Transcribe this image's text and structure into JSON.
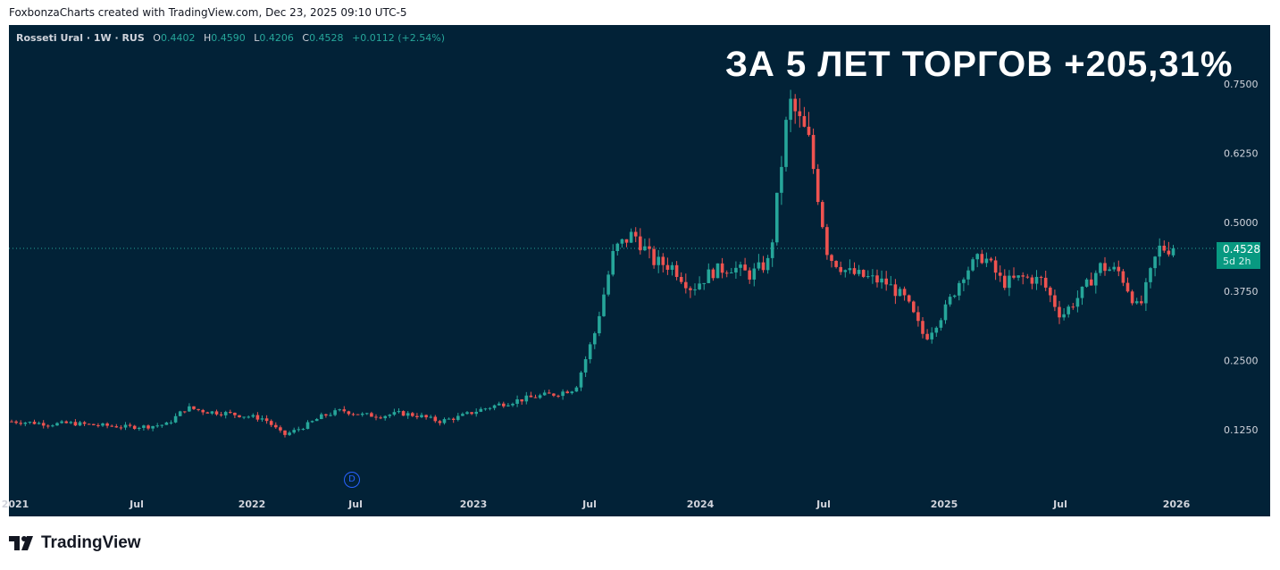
{
  "credit": "FoxbonzaCharts created with TradingView.com, Dec 23, 2025 09:10 UTC-5",
  "legend": {
    "symbol": "Rosseti Ural · 1W · RUS",
    "o_label": "O",
    "o": "0.4402",
    "h_label": "H",
    "h": "0.4590",
    "l_label": "L",
    "l": "0.4206",
    "c_label": "C",
    "c": "0.4528",
    "change": "+0.0112 (+2.54%)"
  },
  "headline": "ЗА 5 ЛЕТ ТОРГОВ +205,31%",
  "last_price": {
    "value": "0.4528",
    "countdown": "5d 2h"
  },
  "dividend_marker": "D",
  "logo": "TradingView",
  "colors": {
    "up": "#26a69a",
    "down": "#ef5350",
    "bg": "#022237"
  },
  "chart_data": {
    "type": "candlestick",
    "title": "Rosseti Ural · 1W · RUS",
    "interval": "weekly",
    "monthly_close_approx": {
      "start": "2021-01",
      "end": "2025-12",
      "values": [
        0.14,
        0.138,
        0.135,
        0.137,
        0.134,
        0.132,
        0.13,
        0.131,
        0.135,
        0.165,
        0.158,
        0.155,
        0.15,
        0.145,
        0.115,
        0.13,
        0.15,
        0.16,
        0.152,
        0.15,
        0.155,
        0.15,
        0.14,
        0.148,
        0.16,
        0.17,
        0.178,
        0.185,
        0.19,
        0.2,
        0.3,
        0.45,
        0.48,
        0.43,
        0.42,
        0.38,
        0.41,
        0.42,
        0.405,
        0.43,
        0.72,
        0.65,
        0.44,
        0.41,
        0.4,
        0.39,
        0.36,
        0.29,
        0.34,
        0.41,
        0.44,
        0.39,
        0.4,
        0.395,
        0.33,
        0.37,
        0.42,
        0.41,
        0.34,
        0.4528
      ]
    },
    "y_ticks": [
      "0.7500",
      "0.6250",
      "0.5000",
      "0.3750",
      "0.2500",
      "0.1250"
    ],
    "y_tick_values": [
      0.75,
      0.625,
      0.5,
      0.375,
      0.25,
      0.125
    ],
    "x_ticks": [
      "2021",
      "Jul",
      "2022",
      "Jul",
      "2023",
      "Jul",
      "2024",
      "Jul",
      "2025",
      "Jul",
      "2026"
    ],
    "ylim": [
      0.04,
      0.82
    ],
    "last": 0.4528
  }
}
